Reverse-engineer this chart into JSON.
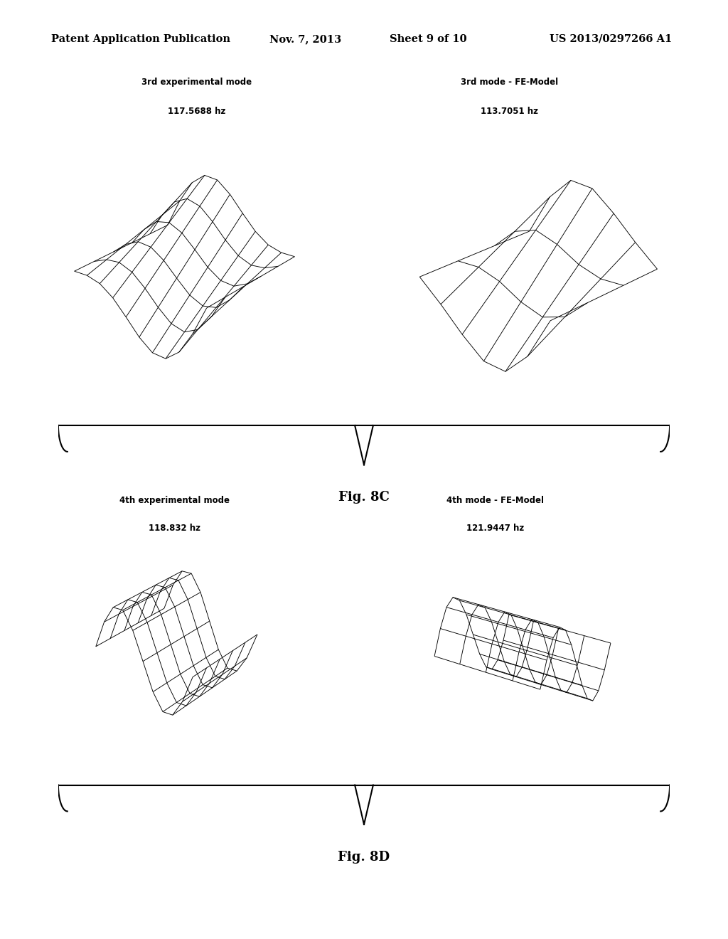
{
  "bg_color": "#ffffff",
  "header_text": "Patent Application Publication",
  "header_date": "Nov. 7, 2013",
  "header_sheet": "Sheet 9 of 10",
  "header_patent": "US 2013/0297266 A1",
  "fig_8c_label": "Fig. 8C",
  "fig_8d_label": "Fig. 8D",
  "top_left_title": "3rd experimental mode",
  "top_left_freq": "117.5688 hz",
  "top_right_title": "3rd mode - FE-Model",
  "top_right_freq": "113.7051 hz",
  "bot_left_title": "4th experimental mode",
  "bot_left_freq": "118.832 hz",
  "bot_right_title": "4th mode - FE-Model",
  "bot_right_freq": "121.9447 hz",
  "line_color": "#000000",
  "text_color": "#000000"
}
